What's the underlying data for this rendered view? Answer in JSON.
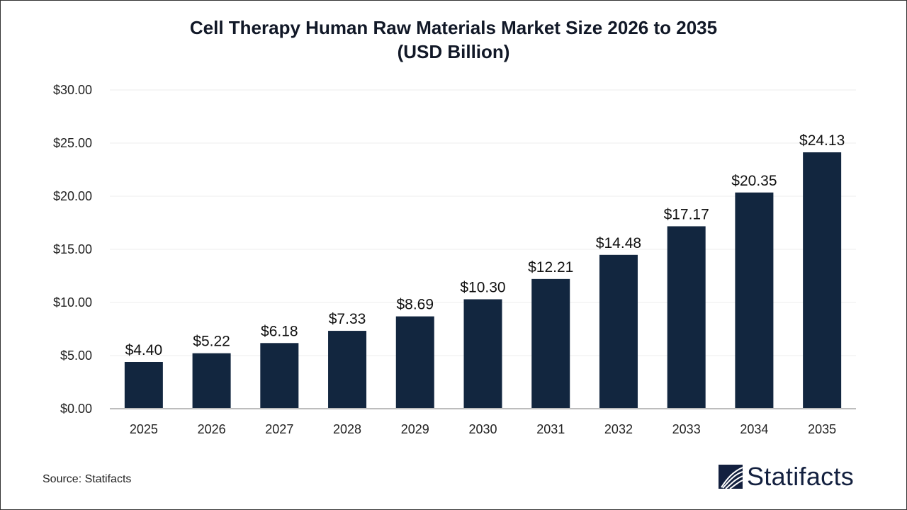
{
  "chart_data": {
    "type": "bar",
    "title": "Cell Therapy Human Raw Materials Market Size 2026 to 2035",
    "subtitle": "(USD Billion)",
    "categories": [
      "2025",
      "2026",
      "2027",
      "2028",
      "2029",
      "2030",
      "2031",
      "2032",
      "2033",
      "2034",
      "2035"
    ],
    "values": [
      4.4,
      5.22,
      6.18,
      7.33,
      8.69,
      10.3,
      12.21,
      14.48,
      17.17,
      20.35,
      24.13
    ],
    "data_labels": [
      "$4.40",
      "$5.22",
      "$6.18",
      "$7.33",
      "$8.69",
      "$10.30",
      "$12.21",
      "$14.48",
      "$17.17",
      "$20.35",
      "$24.13"
    ],
    "yticks": [
      0,
      5,
      10,
      15,
      20,
      25,
      30
    ],
    "ytick_labels": [
      "$0.00",
      "$5.00",
      "$10.00",
      "$15.00",
      "$20.00",
      "$25.00",
      "$30.00"
    ],
    "ylim": [
      0,
      30
    ],
    "xlabel": "",
    "ylabel": "",
    "grid": true,
    "bar_color": "#12263f"
  },
  "source": "Source: Statifacts",
  "logo": {
    "text": "Statifacts",
    "color": "#13203f"
  }
}
